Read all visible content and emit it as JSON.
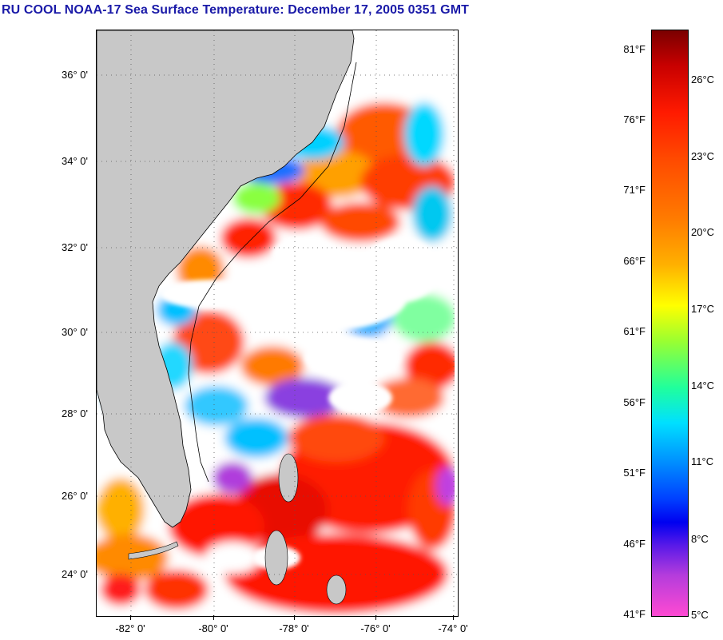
{
  "title": "RU COOL  NOAA-17  Sea Surface Temperature:  December 17, 2005 0351 GMT",
  "map": {
    "latitude_labels": [
      "36° 0'",
      "34° 0'",
      "32° 0'",
      "30° 0'",
      "28° 0'",
      "26° 0'",
      "24° 0'"
    ],
    "longitude_labels": [
      "-82° 0'",
      "-80° 0'",
      "-78° 0'",
      "-76° 0'",
      "-74° 0'"
    ],
    "land_color": "#c8c8c8",
    "cloud_color": "#ffffff",
    "grid": "dotted"
  },
  "colorbar": {
    "fahrenheit_labels": [
      "81°F",
      "76°F",
      "71°F",
      "66°F",
      "61°F",
      "56°F",
      "51°F",
      "46°F",
      "41°F"
    ],
    "celsius_labels": [
      "26°C",
      "23°C",
      "20°C",
      "17°C",
      "14°C",
      "11°C",
      "8°C",
      "5°C"
    ]
  }
}
